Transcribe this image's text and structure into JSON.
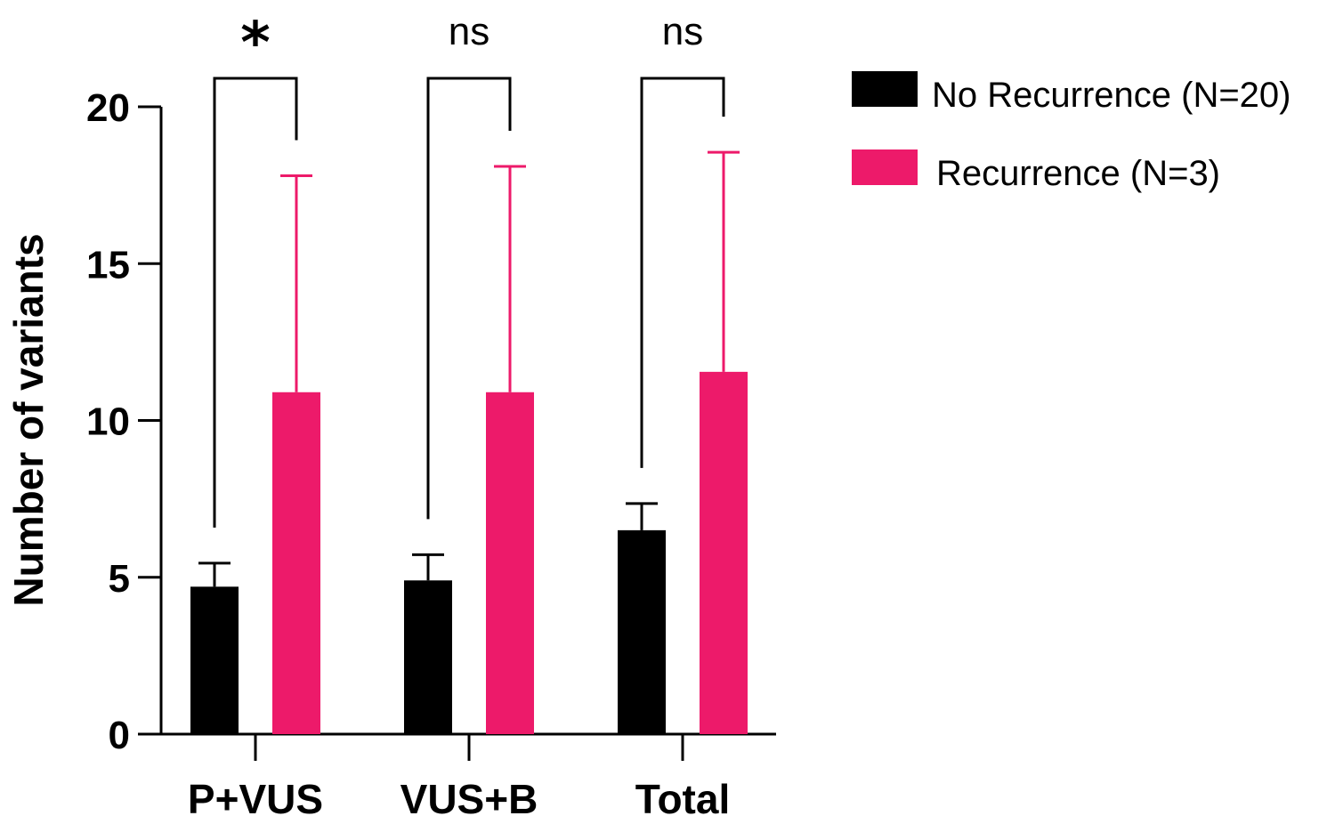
{
  "chart_data": {
    "type": "bar",
    "ylabel": "Number of variants",
    "xlabel": "",
    "ylim": [
      0,
      20
    ],
    "yticks": [
      "0",
      "5",
      "10",
      "15",
      "20"
    ],
    "categories": [
      "P+VUS",
      "VUS+B",
      "Total"
    ],
    "series": [
      {
        "name": "No Recurrence (N=20)",
        "color": "#000000",
        "values": [
          4.7,
          4.9,
          6.5
        ],
        "error_upper": [
          5.45,
          5.72,
          7.35
        ]
      },
      {
        "name": "Recurrence (N=3)",
        "color": "#ED1A6A",
        "values": [
          10.9,
          10.9,
          11.55
        ],
        "error_upper": [
          17.8,
          18.1,
          18.55
        ]
      }
    ],
    "significance": [
      "*",
      "ns",
      "ns"
    ],
    "grid": false,
    "legend_position": "top-right"
  }
}
